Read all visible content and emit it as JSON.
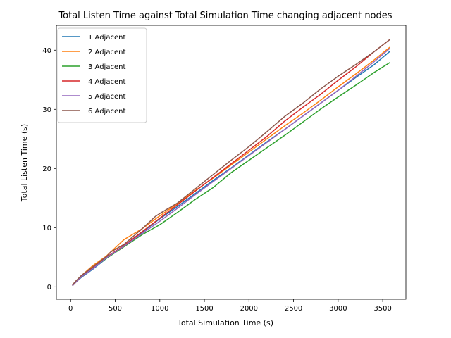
{
  "chart_data": {
    "type": "line",
    "title": "Total Listen Time against Total Simulation Time changing adjacent nodes",
    "xlabel": "Total Simulation Time (s)",
    "ylabel": "Total Listen Time (s)",
    "xlim": [
      -160,
      3760
    ],
    "ylim": [
      -2.1,
      44.2
    ],
    "xticks": [
      0,
      500,
      1000,
      1500,
      2000,
      2500,
      3000,
      3500
    ],
    "yticks": [
      0,
      10,
      20,
      30,
      40
    ],
    "grid": false,
    "legend_position": "top-left",
    "series": [
      {
        "name": "1 Adjacent",
        "color": "#1f77b4",
        "x": [
          20,
          60,
          120,
          250,
          400,
          600,
          800,
          1000,
          1200,
          1400,
          1600,
          1800,
          2000,
          2200,
          2400,
          2600,
          2800,
          3000,
          3200,
          3400,
          3580
        ],
        "y": [
          0.2,
          0.8,
          1.6,
          3.0,
          4.8,
          6.9,
          9.2,
          11.5,
          13.6,
          15.8,
          18.0,
          20.1,
          22.3,
          24.5,
          26.6,
          28.8,
          31.0,
          33.2,
          35.4,
          37.5,
          39.8
        ]
      },
      {
        "name": "2 Adjacent",
        "color": "#ff7f0e",
        "x": [
          20,
          60,
          120,
          250,
          400,
          600,
          800,
          1000,
          1200,
          1400,
          1600,
          1800,
          2000,
          2200,
          2400,
          2600,
          2800,
          3000,
          3200,
          3400,
          3580
        ],
        "y": [
          0.3,
          1.0,
          1.9,
          3.6,
          5.2,
          8.0,
          9.8,
          12.0,
          14.1,
          16.3,
          18.4,
          20.6,
          22.8,
          25.0,
          27.2,
          29.3,
          31.5,
          33.8,
          36.0,
          38.3,
          40.5
        ]
      },
      {
        "name": "3 Adjacent",
        "color": "#2ca02c",
        "x": [
          20,
          60,
          120,
          250,
          400,
          600,
          800,
          1000,
          1200,
          1400,
          1600,
          1800,
          2000,
          2200,
          2400,
          2600,
          2800,
          3000,
          3200,
          3400,
          3580
        ],
        "y": [
          0.2,
          0.8,
          1.7,
          3.2,
          4.8,
          6.8,
          8.8,
          10.5,
          12.6,
          14.8,
          16.8,
          19.3,
          21.4,
          23.5,
          25.6,
          27.8,
          30.0,
          32.1,
          34.1,
          36.2,
          37.9
        ]
      },
      {
        "name": "4 Adjacent",
        "color": "#d62728",
        "x": [
          20,
          60,
          120,
          250,
          400,
          600,
          800,
          1000,
          1200,
          1400,
          1600,
          1800,
          2000,
          2200,
          2400,
          2600,
          2800,
          3000,
          3200,
          3400,
          3580
        ],
        "y": [
          0.2,
          0.8,
          1.7,
          3.2,
          5.0,
          7.0,
          9.3,
          11.6,
          13.9,
          16.2,
          18.5,
          20.8,
          23.1,
          25.4,
          28.0,
          30.3,
          32.5,
          34.9,
          37.2,
          39.7,
          41.8
        ]
      },
      {
        "name": "5 Adjacent",
        "color": "#9467bd",
        "x": [
          20,
          60,
          120,
          250,
          400,
          600,
          800,
          1000,
          1200,
          1400,
          1600,
          1800,
          2000,
          2200,
          2400,
          2600,
          2800,
          3000,
          3200,
          3400,
          3580
        ],
        "y": [
          0.2,
          0.8,
          1.7,
          3.1,
          4.9,
          6.9,
          9.0,
          11.1,
          13.3,
          15.6,
          17.8,
          20.0,
          22.2,
          24.4,
          26.6,
          28.8,
          31.0,
          33.2,
          35.6,
          38.0,
          40.3
        ]
      },
      {
        "name": "6 Adjacent",
        "color": "#8c564b",
        "x": [
          20,
          60,
          120,
          250,
          400,
          450,
          600,
          800,
          950,
          1000,
          1200,
          1400,
          1600,
          1800,
          2000,
          2200,
          2400,
          2600,
          2800,
          3000,
          3200,
          3400,
          3580
        ],
        "y": [
          0.3,
          1.0,
          1.9,
          3.4,
          5.1,
          5.9,
          7.2,
          9.8,
          11.9,
          12.4,
          14.2,
          16.6,
          19.0,
          21.4,
          23.7,
          26.2,
          28.8,
          31.0,
          33.4,
          35.6,
          37.6,
          39.7,
          41.8
        ]
      }
    ]
  }
}
